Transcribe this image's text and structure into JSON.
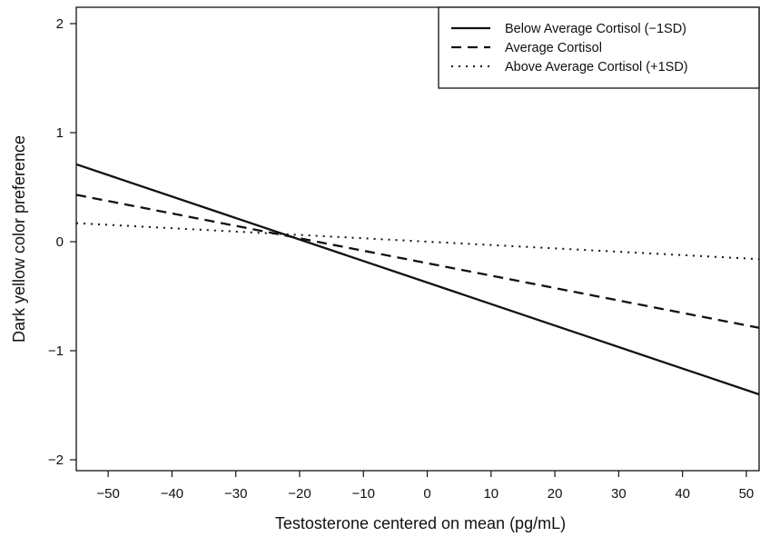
{
  "chart_data": {
    "type": "line",
    "title": "",
    "xlabel": "Testosterone centered on mean (pg/mL)",
    "ylabel": "Dark yellow color preference",
    "xlim": [
      -55,
      52
    ],
    "ylim": [
      -2.1,
      2.15
    ],
    "xticks": [
      -50,
      -40,
      -30,
      -20,
      -10,
      0,
      10,
      20,
      30,
      40,
      50
    ],
    "xtick_labels": [
      "−50",
      "−40",
      "−30",
      "−20",
      "−10",
      "0",
      "10",
      "20",
      "30",
      "40",
      "50"
    ],
    "yticks": [
      -2,
      -1,
      0,
      1,
      2
    ],
    "ytick_labels": [
      "−2",
      "−1",
      "0",
      "1",
      "2"
    ],
    "grid": false,
    "legend_position": "top-right",
    "series": [
      {
        "name": "Below Average Cortisol (−1SD)",
        "style": "solid",
        "color": "#111111",
        "x": [
          -55,
          52
        ],
        "y": [
          0.71,
          -1.4
        ]
      },
      {
        "name": "Average Cortisol",
        "style": "dashed",
        "color": "#111111",
        "x": [
          -55,
          52
        ],
        "y": [
          0.43,
          -0.79
        ]
      },
      {
        "name": "Above Average Cortisol (+1SD)",
        "style": "dotted",
        "color": "#111111",
        "x": [
          -55,
          52
        ],
        "y": [
          0.17,
          -0.16
        ]
      }
    ]
  }
}
